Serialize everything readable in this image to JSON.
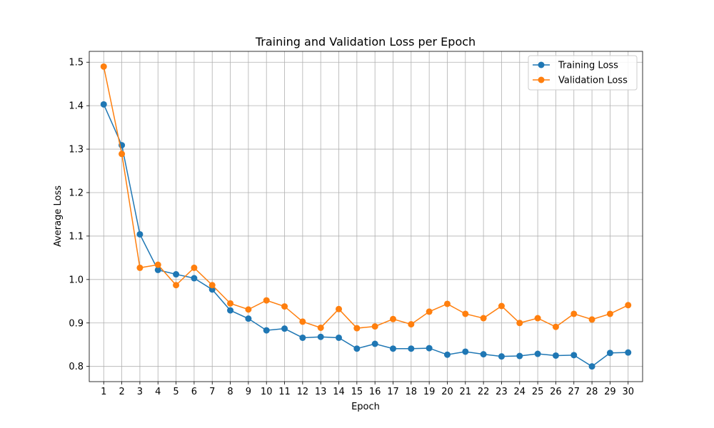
{
  "chart_data": {
    "type": "line",
    "title": "Training and Validation Loss per Epoch",
    "xlabel": "Epoch",
    "ylabel": "Average Loss",
    "x": [
      1,
      2,
      3,
      4,
      5,
      6,
      7,
      8,
      9,
      10,
      11,
      12,
      13,
      14,
      15,
      16,
      17,
      18,
      19,
      20,
      21,
      22,
      23,
      24,
      25,
      26,
      27,
      28,
      29,
      30
    ],
    "xticks": [
      "1",
      "2",
      "3",
      "4",
      "5",
      "6",
      "7",
      "8",
      "9",
      "10",
      "11",
      "12",
      "13",
      "14",
      "15",
      "16",
      "17",
      "18",
      "19",
      "20",
      "21",
      "22",
      "23",
      "24",
      "25",
      "26",
      "27",
      "28",
      "29",
      "30"
    ],
    "yticks": [
      "0.8",
      "0.9",
      "1.0",
      "1.1",
      "1.2",
      "1.3",
      "1.4",
      "1.5"
    ],
    "ytick_values": [
      0.8,
      0.9,
      1.0,
      1.1,
      1.2,
      1.3,
      1.4,
      1.5
    ],
    "xlim": [
      0.2,
      30.8
    ],
    "ylim": [
      0.765,
      1.525
    ],
    "grid": true,
    "legend_position": "upper right",
    "series": [
      {
        "name": "Training Loss",
        "color": "#1f77b4",
        "marker": "circle",
        "values": [
          1.403,
          1.309,
          1.104,
          1.022,
          1.012,
          1.003,
          0.977,
          0.929,
          0.91,
          0.883,
          0.887,
          0.866,
          0.868,
          0.866,
          0.841,
          0.852,
          0.841,
          0.841,
          0.842,
          0.827,
          0.834,
          0.828,
          0.823,
          0.824,
          0.829,
          0.825,
          0.826,
          0.8,
          0.831,
          0.832
        ]
      },
      {
        "name": "Validation Loss",
        "color": "#ff7f0e",
        "marker": "circle",
        "values": [
          1.49,
          1.289,
          1.027,
          1.034,
          0.987,
          1.027,
          0.987,
          0.945,
          0.931,
          0.952,
          0.938,
          0.903,
          0.889,
          0.932,
          0.888,
          0.892,
          0.909,
          0.897,
          0.926,
          0.944,
          0.921,
          0.911,
          0.939,
          0.9,
          0.911,
          0.891,
          0.921,
          0.908,
          0.921,
          0.941
        ]
      }
    ]
  }
}
